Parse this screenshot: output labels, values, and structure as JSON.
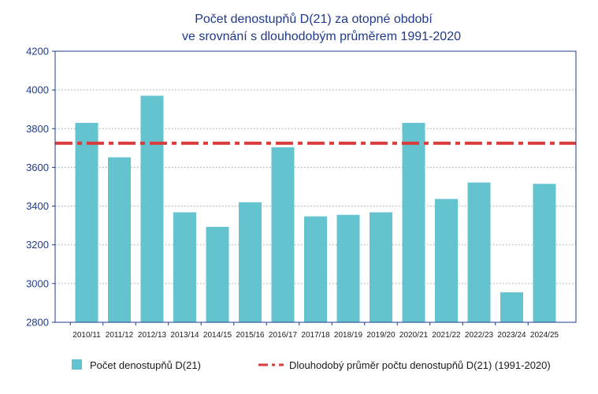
{
  "chart_data": {
    "type": "bar",
    "title_line1": "Počet denostupňů D(21) za otopné období",
    "title_line2": "ve srovnání s dlouhodobým průměrem 1991-2020",
    "categories": [
      "2010/11",
      "2011/12",
      "2012/13",
      "2013/14",
      "2014/15",
      "2015/16",
      "2016/17",
      "2017/18",
      "2018/19",
      "2019/20",
      "2020/21",
      "2021/22",
      "2022/23",
      "2023/24",
      "2024/25"
    ],
    "series": [
      {
        "name": "Počet denostupňů D(21)",
        "values": [
          3830,
          3652,
          3970,
          3368,
          3293,
          3420,
          3704,
          3347,
          3355,
          3368,
          3830,
          3437,
          3522,
          2955,
          3515
        ]
      }
    ],
    "reference_line": {
      "name": "Dlouhodobý průměr počtu denostupňů D(21) (1991-2020)",
      "value": 3725
    },
    "ylim": [
      2800,
      4200
    ],
    "yticks": [
      2800,
      3000,
      3200,
      3400,
      3600,
      3800,
      4000,
      4200
    ],
    "xlabel": "",
    "ylabel": "",
    "grid": true,
    "legend_position": "bottom",
    "colors": {
      "bar": "#63C4D0",
      "reference": "#D93A3A",
      "title": "#1F3A8A",
      "axis": "#1F3A8A",
      "grid": "#9AA4B4"
    }
  }
}
